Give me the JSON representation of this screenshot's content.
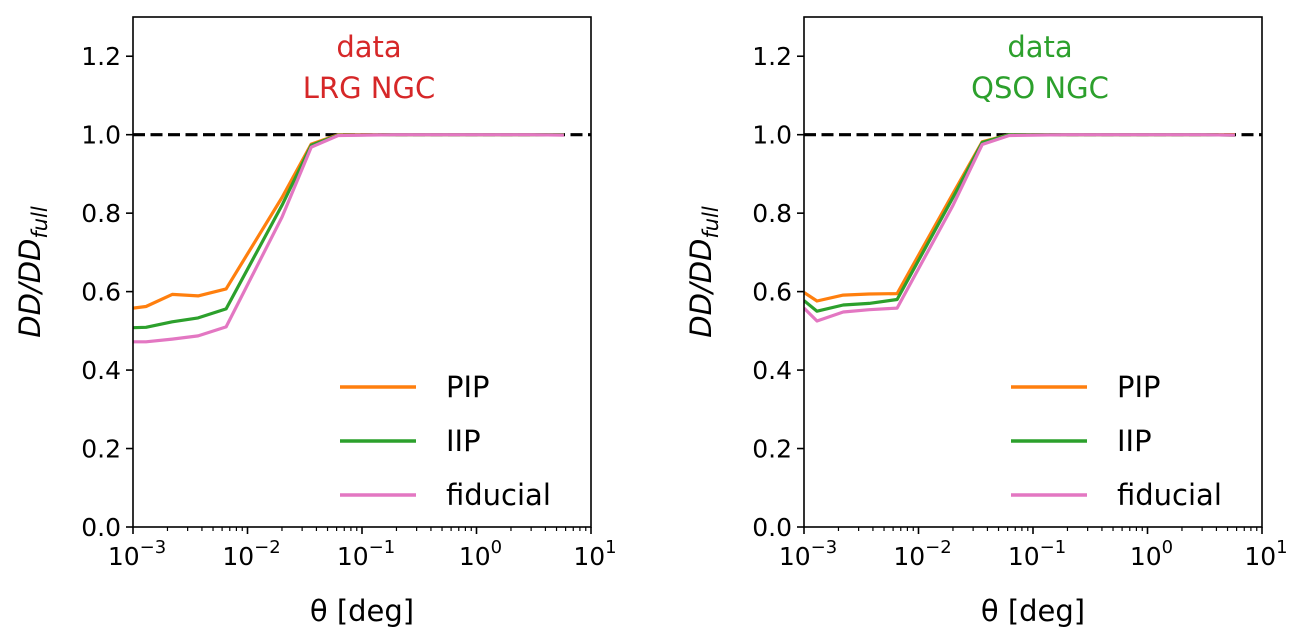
{
  "chart_data": [
    {
      "type": "line",
      "xscale": "log",
      "xlim": [
        0.001,
        10
      ],
      "ylim": [
        0.0,
        1.3
      ],
      "xlabel": "θ [deg]",
      "ylabel": {
        "main": "DD/DD",
        "sub": "full"
      },
      "annotation": [
        "data",
        "LRG NGC"
      ],
      "annotation_color": "#d62728",
      "xticks": [
        {
          "value": 0.001,
          "base": "10",
          "exp": "−3"
        },
        {
          "value": 0.01,
          "base": "10",
          "exp": "−2"
        },
        {
          "value": 0.1,
          "base": "10",
          "exp": "−1"
        },
        {
          "value": 1,
          "base": "10",
          "exp": "0"
        },
        {
          "value": 10,
          "base": "10",
          "exp": "1"
        }
      ],
      "yticks": [
        "0.0",
        "0.2",
        "0.4",
        "0.6",
        "0.8",
        "1.0",
        "1.2"
      ],
      "reference_line": {
        "y": 1.0,
        "style": "dashed",
        "color": "#000000"
      },
      "x": [
        0.001,
        0.0013,
        0.0022,
        0.0037,
        0.0065,
        0.02,
        0.036,
        0.062,
        0.2,
        1,
        3,
        5.8
      ],
      "series": [
        {
          "name": "PIP",
          "color": "#ff7f0e",
          "values": [
            0.558,
            0.562,
            0.593,
            0.589,
            0.607,
            0.84,
            0.976,
            1.0,
            1.0,
            1.0,
            1.0,
            1.0
          ]
        },
        {
          "name": "IIP",
          "color": "#2ca02c",
          "values": [
            0.508,
            0.509,
            0.523,
            0.533,
            0.556,
            0.82,
            0.973,
            0.999,
            1.0,
            1.0,
            1.0,
            1.0
          ]
        },
        {
          "name": "fiducial",
          "color": "#e377c2",
          "values": [
            0.472,
            0.472,
            0.479,
            0.487,
            0.51,
            0.79,
            0.968,
            0.998,
            1.0,
            1.0,
            1.0,
            0.999
          ]
        }
      ],
      "legend": {
        "location": "lower-right",
        "entries": [
          "PIP",
          "IIP",
          "fiducial"
        ]
      }
    },
    {
      "type": "line",
      "xscale": "log",
      "xlim": [
        0.001,
        10
      ],
      "ylim": [
        0.0,
        1.3
      ],
      "xlabel": "θ [deg]",
      "ylabel": {
        "main": "DD/DD",
        "sub": "full"
      },
      "annotation": [
        "data",
        "QSO NGC"
      ],
      "annotation_color": "#2ca02c",
      "xticks": [
        {
          "value": 0.001,
          "base": "10",
          "exp": "−3"
        },
        {
          "value": 0.01,
          "base": "10",
          "exp": "−2"
        },
        {
          "value": 0.1,
          "base": "10",
          "exp": "−1"
        },
        {
          "value": 1,
          "base": "10",
          "exp": "0"
        },
        {
          "value": 10,
          "base": "10",
          "exp": "1"
        }
      ],
      "yticks": [
        "0.0",
        "0.2",
        "0.4",
        "0.6",
        "0.8",
        "1.0",
        "1.2"
      ],
      "reference_line": {
        "y": 1.0,
        "style": "dashed",
        "color": "#000000"
      },
      "x": [
        0.001,
        0.0013,
        0.0022,
        0.0037,
        0.0065,
        0.02,
        0.036,
        0.062,
        0.2,
        1,
        3,
        5.8
      ],
      "series": [
        {
          "name": "PIP",
          "color": "#ff7f0e",
          "values": [
            0.598,
            0.576,
            0.591,
            0.594,
            0.595,
            0.85,
            0.982,
            1.0,
            1.0,
            1.0,
            1.0,
            1.0
          ]
        },
        {
          "name": "IIP",
          "color": "#2ca02c",
          "values": [
            0.577,
            0.55,
            0.566,
            0.57,
            0.58,
            0.84,
            0.98,
            1.0,
            1.0,
            1.0,
            1.0,
            0.999
          ]
        },
        {
          "name": "fiducial",
          "color": "#e377c2",
          "values": [
            0.558,
            0.525,
            0.548,
            0.554,
            0.558,
            0.82,
            0.975,
            0.998,
            1.0,
            1.0,
            1.0,
            0.999
          ]
        }
      ],
      "legend": {
        "location": "lower-right",
        "entries": [
          "PIP",
          "IIP",
          "fiducial"
        ]
      }
    }
  ]
}
